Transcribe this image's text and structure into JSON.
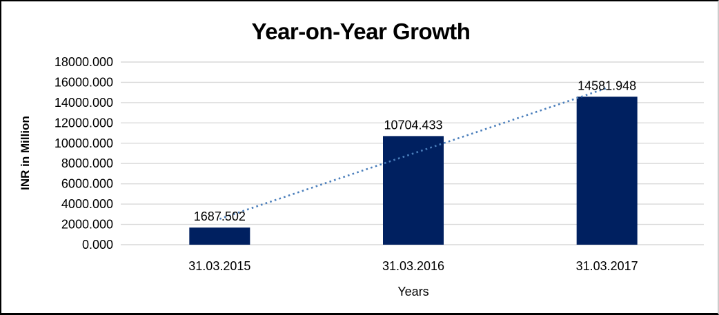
{
  "chart_data": {
    "type": "bar",
    "title": "Year-on-Year Growth",
    "xlabel": "Years",
    "ylabel": "INR in Million",
    "categories": [
      "31.03.2015",
      "31.03.2016",
      "31.03.2017"
    ],
    "values": [
      1687.502,
      10704.433,
      14581.948
    ],
    "value_labels": [
      "1687.502",
      "10704.433",
      "14581.948"
    ],
    "ytick_labels": [
      "0.000",
      "2000.000",
      "4000.000",
      "6000.000",
      "8000.000",
      "10000.000",
      "12000.000",
      "14000.000",
      "16000.000",
      "18000.000"
    ],
    "ylim": [
      0,
      18000
    ],
    "grid": true,
    "legend": "none",
    "colors": {
      "bar": "#002060",
      "gridline": "#d9d9d9",
      "trendline": "#4a7ebb",
      "text": "#000000"
    },
    "trendline": {
      "type": "linear",
      "style": "dotted"
    }
  }
}
